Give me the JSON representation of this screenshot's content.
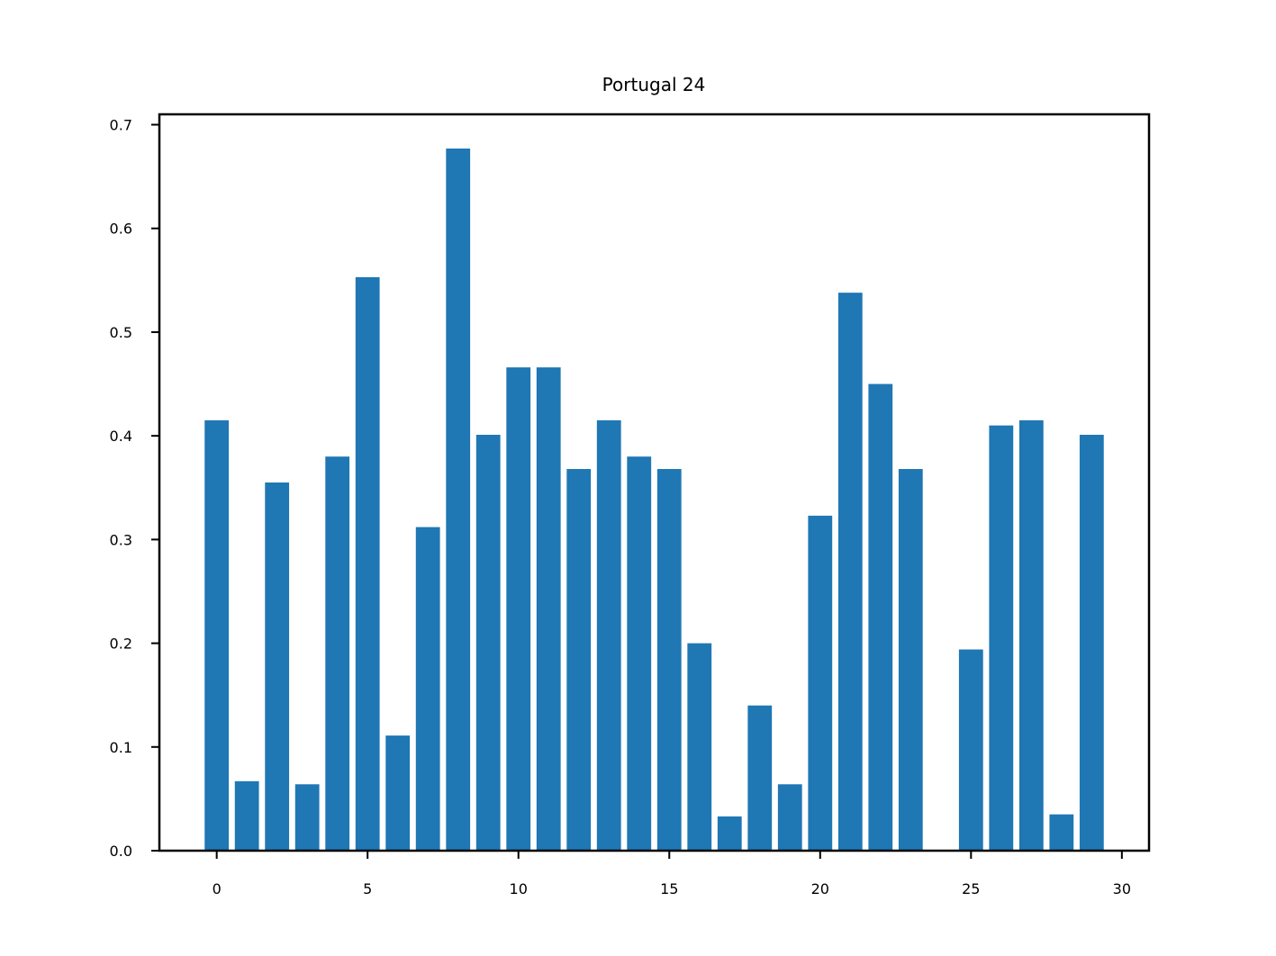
{
  "chart_data": {
    "type": "bar",
    "title": "Portugal 24",
    "xlabel": "",
    "ylabel": "",
    "x": [
      0,
      1,
      2,
      3,
      4,
      5,
      6,
      7,
      8,
      9,
      10,
      11,
      12,
      13,
      14,
      15,
      16,
      17,
      18,
      19,
      20,
      21,
      22,
      23,
      24,
      25,
      26,
      27,
      28,
      29
    ],
    "values": [
      0.415,
      0.067,
      0.355,
      0.064,
      0.38,
      0.553,
      0.111,
      0.312,
      0.677,
      0.401,
      0.466,
      0.466,
      0.368,
      0.415,
      0.38,
      0.368,
      0.2,
      0.033,
      0.14,
      0.064,
      0.323,
      0.538,
      0.45,
      0.368,
      0.0,
      0.194,
      0.41,
      0.415,
      0.035,
      0.401
    ],
    "xlim": [
      -1.9,
      30.9
    ],
    "ylim": [
      0,
      0.71
    ],
    "xticks": [
      0,
      5,
      10,
      15,
      20,
      25,
      30
    ],
    "xtick_labels": [
      "0",
      "5",
      "10",
      "15",
      "20",
      "25",
      "30"
    ],
    "yticks": [
      0.0,
      0.1,
      0.2,
      0.3,
      0.4,
      0.5,
      0.6,
      0.7
    ],
    "ytick_labels": [
      "0.0",
      "0.1",
      "0.2",
      "0.3",
      "0.4",
      "0.5",
      "0.6",
      "0.7"
    ],
    "bar_color": "#1f77b4",
    "grid": false,
    "legend": "none"
  }
}
